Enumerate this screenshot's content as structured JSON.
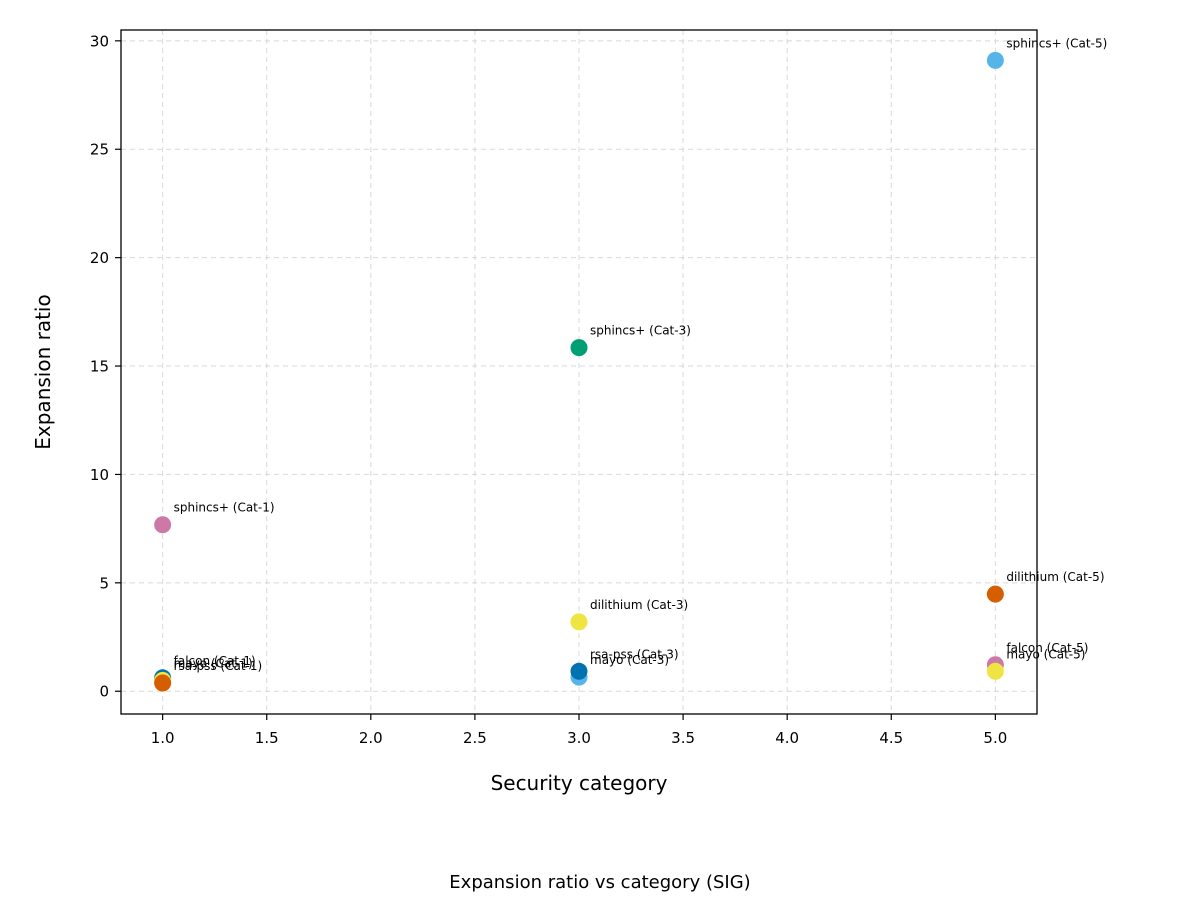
{
  "chart_data": {
    "type": "scatter",
    "title": "",
    "caption": "Expansion ratio vs category (SIG)",
    "xlabel": "Security category",
    "ylabel": "Expansion ratio",
    "xlim": [
      0.8,
      5.2
    ],
    "ylim": [
      -1.05,
      30.5
    ],
    "xticks": [
      1.0,
      1.5,
      2.0,
      2.5,
      3.0,
      3.5,
      4.0,
      4.5,
      5.0
    ],
    "xtick_labels": [
      "1.0",
      "1.5",
      "2.0",
      "2.5",
      "3.0",
      "3.5",
      "4.0",
      "4.5",
      "5.0"
    ],
    "yticks": [
      0,
      5,
      10,
      15,
      20,
      25,
      30
    ],
    "ytick_labels": [
      "0",
      "5",
      "10",
      "15",
      "20",
      "25",
      "30"
    ],
    "grid": true,
    "points": [
      {
        "label": "sphincs+ (Cat-5)",
        "x": 5,
        "y": 29.1,
        "color": "#56B4E9"
      },
      {
        "label": "sphincs+ (Cat-3)",
        "x": 3,
        "y": 15.85,
        "color": "#009E73"
      },
      {
        "label": "sphincs+ (Cat-1)",
        "x": 1,
        "y": 7.68,
        "color": "#CC79A7"
      },
      {
        "label": "dilithium (Cat-5)",
        "x": 5,
        "y": 4.48,
        "color": "#D55E00"
      },
      {
        "label": "dilithium (Cat-3)",
        "x": 3,
        "y": 3.2,
        "color": "#F0E442"
      },
      {
        "label": "falcon (Cat-5)",
        "x": 5,
        "y": 1.22,
        "color": "#CC79A7"
      },
      {
        "label": "mayo (Cat-5)",
        "x": 5,
        "y": 0.92,
        "color": "#F0E442"
      },
      {
        "label": "mayo (Cat-3)",
        "x": 3,
        "y": 0.65,
        "color": "#56B4E9"
      },
      {
        "label": "rsa-pss (Cat-3)",
        "x": 3,
        "y": 0.92,
        "color": "#0072B2"
      },
      {
        "label": "falcon (Cat-1)",
        "x": 1,
        "y": 0.62,
        "color": "#0072B2"
      },
      {
        "label": "mayo (Cat-1)",
        "x": 1,
        "y": 0.5,
        "color": "#F0E442"
      },
      {
        "label": "rsa-pss (Cat-1)",
        "x": 1,
        "y": 0.38,
        "color": "#D55E00"
      }
    ]
  }
}
